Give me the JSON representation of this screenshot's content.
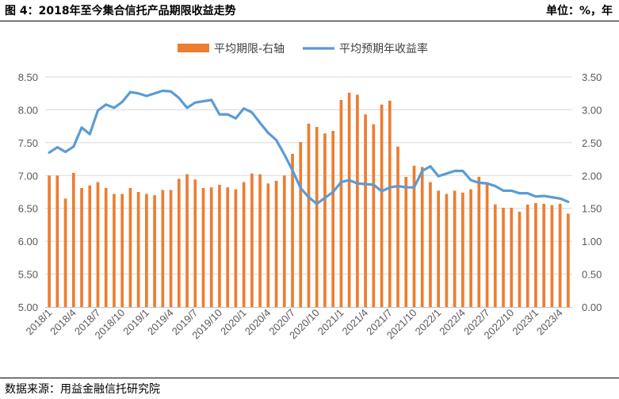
{
  "header": {
    "title": "图 4：2018年至今集合信托产品期限收益走势",
    "unit": "单位：%，年"
  },
  "footer": {
    "source": "数据来源：用益金融信托研究院"
  },
  "chart_data": {
    "type": "bar+line",
    "title": "",
    "xlabel": "",
    "ylabel": "",
    "ylim_left": [
      5.0,
      8.5
    ],
    "ylim_right": [
      0.0,
      3.5
    ],
    "left_ticks": [
      "5.00",
      "5.50",
      "6.00",
      "6.50",
      "7.00",
      "7.50",
      "8.00",
      "8.50"
    ],
    "right_ticks": [
      "0.00",
      "0.50",
      "1.00",
      "1.50",
      "2.00",
      "2.50",
      "3.00",
      "3.50"
    ],
    "x_tick_labels": [
      "2018/1",
      "2018/4",
      "2018/7",
      "2018/10",
      "2019/1",
      "2019/4",
      "2019/7",
      "2019/10",
      "2020/1",
      "2020/4",
      "2020/7",
      "2020/10",
      "2021/1",
      "2021/4",
      "2021/7",
      "2021/10",
      "2022/1",
      "2022/4",
      "2022/7",
      "2022/10",
      "2023/1",
      "2023/4"
    ],
    "grid": true,
    "legend_position": "top-center",
    "categories": [
      "2018/1",
      "2018/2",
      "2018/3",
      "2018/4",
      "2018/5",
      "2018/6",
      "2018/7",
      "2018/8",
      "2018/9",
      "2018/10",
      "2018/11",
      "2018/12",
      "2019/1",
      "2019/2",
      "2019/3",
      "2019/4",
      "2019/5",
      "2019/6",
      "2019/7",
      "2019/8",
      "2019/9",
      "2019/10",
      "2019/11",
      "2019/12",
      "2020/1",
      "2020/2",
      "2020/3",
      "2020/4",
      "2020/5",
      "2020/6",
      "2020/7",
      "2020/8",
      "2020/9",
      "2020/10",
      "2020/11",
      "2020/12",
      "2021/1",
      "2021/2",
      "2021/3",
      "2021/4",
      "2021/5",
      "2021/6",
      "2021/7",
      "2021/8",
      "2021/9",
      "2021/10",
      "2021/11",
      "2021/12",
      "2022/1",
      "2022/2",
      "2022/3",
      "2022/4",
      "2022/5",
      "2022/6",
      "2022/7",
      "2022/8",
      "2022/9",
      "2022/10",
      "2022/11",
      "2022/12",
      "2023/1",
      "2023/2",
      "2023/3",
      "2023/4",
      "2023/5"
    ],
    "series": [
      {
        "name": "平均期限-右轴",
        "kind": "bar",
        "axis": "right",
        "color": "#ED7D31",
        "values": [
          2.0,
          2.0,
          1.65,
          2.04,
          1.81,
          1.85,
          1.9,
          1.81,
          1.72,
          1.72,
          1.81,
          1.75,
          1.72,
          1.7,
          1.78,
          1.78,
          1.95,
          2.02,
          1.94,
          1.81,
          1.82,
          1.86,
          1.82,
          1.79,
          1.9,
          2.03,
          2.02,
          1.88,
          1.92,
          2.0,
          2.33,
          2.51,
          2.79,
          2.74,
          2.64,
          2.68,
          3.15,
          3.26,
          3.23,
          2.93,
          2.78,
          3.08,
          3.14,
          2.44,
          1.98,
          2.15,
          2.13,
          1.9,
          1.77,
          1.72,
          1.77,
          1.74,
          1.79,
          1.98,
          1.9,
          1.56,
          1.51,
          1.51,
          1.45,
          1.56,
          1.58,
          1.57,
          1.55,
          1.57,
          1.42
        ]
      },
      {
        "name": "平均预期年收益率",
        "kind": "line",
        "axis": "left",
        "color": "#5B9BD5",
        "values": [
          7.35,
          7.43,
          7.36,
          7.44,
          7.73,
          7.63,
          7.99,
          8.08,
          8.03,
          8.12,
          8.27,
          8.25,
          8.21,
          8.25,
          8.29,
          8.28,
          8.18,
          8.03,
          8.11,
          8.13,
          8.15,
          7.93,
          7.93,
          7.87,
          8.02,
          7.96,
          7.8,
          7.65,
          7.54,
          7.32,
          7.08,
          6.81,
          6.67,
          6.57,
          6.66,
          6.75,
          6.9,
          6.93,
          6.88,
          6.87,
          6.86,
          6.76,
          6.82,
          6.84,
          6.82,
          6.82,
          7.07,
          7.14,
          6.99,
          7.03,
          7.07,
          7.07,
          6.93,
          6.89,
          6.88,
          6.84,
          6.77,
          6.77,
          6.73,
          6.73,
          6.68,
          6.69,
          6.67,
          6.65,
          6.6
        ]
      }
    ]
  }
}
